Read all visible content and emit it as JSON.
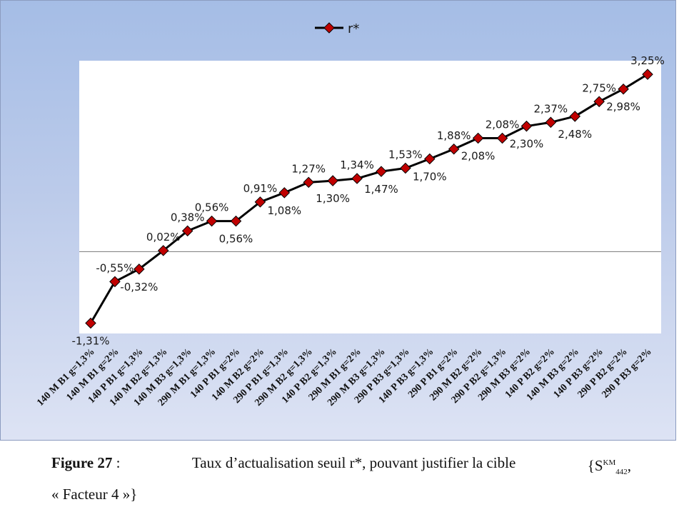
{
  "chart_data": {
    "type": "line",
    "categories": [
      "140 M B1 g=1,3%",
      "140 M B1 g=2%",
      "140 P B1 g=1,3%",
      "140 M B2 g=1,3%",
      "140 M B3 g=1,3%",
      "290 M B1 g=1,3%",
      "140 P B1 g=2%",
      "140 M B2 g=2%",
      "290 P B1 g=1,3%",
      "290 M B2 g=1,3%",
      "140 P B2 g=1,3%",
      "290 M B1 g=2%",
      "290 M B3 g=1,3%",
      "290 P B3 g=1,3%",
      "140 P B3 g=1,3%",
      "290 P B1 g=2%",
      "290 M B2 g=2%",
      "290 P B2 g=1,3%",
      "290 M B3 g=2%",
      "140 P B2 g=2%",
      "140 M B3 g=2%",
      "140 P B3 g=2%",
      "290 P B2 g=2%",
      "290 P B3 g=2%"
    ],
    "series": [
      {
        "name": "r*",
        "values": [
          -1.31,
          -0.55,
          -0.32,
          0.02,
          0.38,
          0.56,
          0.56,
          0.91,
          1.08,
          1.27,
          1.3,
          1.34,
          1.47,
          1.53,
          1.7,
          1.88,
          2.08,
          2.08,
          2.3,
          2.37,
          2.48,
          2.75,
          2.98,
          3.25
        ],
        "labels": [
          "-1,31%",
          "-0,55%",
          "-0,32%",
          "0,02%",
          "0,38%",
          "0,56%",
          "0,56%",
          "0,91%",
          "1,08%",
          "1,27%",
          "1,30%",
          "1,34%",
          "1,47%",
          "1,53%",
          "1,70%",
          "1,88%",
          "2,08%",
          "2,08%",
          "2,30%",
          "2,37%",
          "2,48%",
          "2,75%",
          "2,98%",
          "3,25%"
        ],
        "color": "#c00000",
        "line_color": "#000000"
      }
    ],
    "label_side": [
      "below",
      "above",
      "below",
      "above",
      "above",
      "above",
      "below",
      "above",
      "below",
      "above",
      "below",
      "above",
      "below",
      "above",
      "below",
      "above",
      "below",
      "above",
      "below",
      "above",
      "below",
      "above",
      "below",
      "above"
    ],
    "ylim": [
      -1.5,
      3.5
    ],
    "xlabel": "",
    "ylabel": "",
    "title": "",
    "grid": false,
    "legend": "top-center",
    "plot_background": "#ffffff",
    "frame_gradient": [
      "#a5bde6",
      "#dde3f4"
    ]
  },
  "caption": {
    "figure_label": "Figure 27",
    "text_main": "Taux d’actualisation seuil r*, pouvant justifier la cible",
    "set_open": "{S",
    "sup": "KM",
    "sub": "442",
    "comma": ",",
    "line2": "« Facteur 4 »}"
  }
}
